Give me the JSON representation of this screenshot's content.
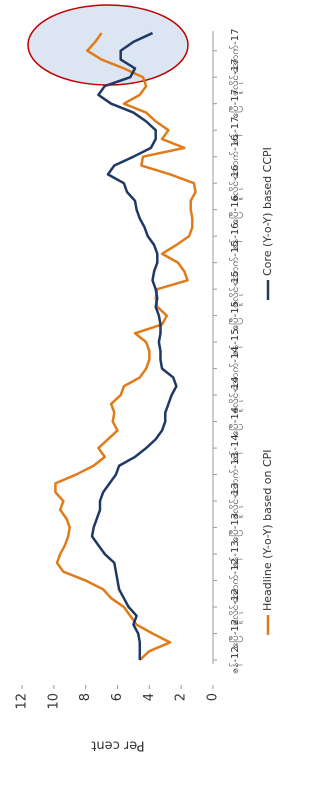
{
  "chart_data": {
    "type": "line",
    "y_label": "Per cent",
    "categories": [
      "ဇန်-12",
      null,
      null,
      "ဧပြီ-12",
      null,
      null,
      "ဇူလိုင်-12",
      null,
      null,
      "အောက်-12",
      null,
      null,
      "ဇန်-13",
      null,
      null,
      "ဧပြီ-13",
      null,
      null,
      "ဇူလိုင်-13",
      null,
      null,
      "အောက်-13",
      null,
      null,
      "ဇန်-14",
      null,
      null,
      "ဧပြီ-14",
      null,
      null,
      "ဇူလိုင်-14",
      null,
      null,
      "အောက်-14",
      null,
      null,
      "ဇန်-15",
      null,
      null,
      "ဧပြီ-15",
      null,
      null,
      "ဇူလိုင်-15",
      null,
      null,
      "အောက်-15",
      null,
      null,
      "ဇန်-16",
      null,
      null,
      "ဧပြီ-16",
      null,
      null,
      "ဇူလိုင်-16",
      null,
      null,
      "အောက်-16",
      null,
      null,
      "ဇန်-17",
      null,
      null,
      "ဧပြီ-17",
      null,
      null,
      "ဇူလိုင်-17",
      null,
      null,
      "အောက်-17",
      null,
      null
    ],
    "series": [
      {
        "name": "Headline (Y-o-Y) based on CPI",
        "color": "#e07b1a",
        "values": [
          4.6,
          4.0,
          2.7,
          3.8,
          4.8,
          5.2,
          5.6,
          6.4,
          6.9,
          8.0,
          9.4,
          9.8,
          9.6,
          9.3,
          9.1,
          9.0,
          9.2,
          9.6,
          9.4,
          9.9,
          9.9,
          8.6,
          7.5,
          6.8,
          7.2,
          6.6,
          6.0,
          6.3,
          6.2,
          6.4,
          5.8,
          5.6,
          4.6,
          4.2,
          4.0,
          4.0,
          4.2,
          4.9,
          3.2,
          2.9,
          3.5,
          3.6,
          3.5,
          1.6,
          1.8,
          2.2,
          3.2,
          2.3,
          1.5,
          1.3,
          1.3,
          1.4,
          1.4,
          1.1,
          1.2,
          2.7,
          4.5,
          4.4,
          1.8,
          3.2,
          2.8,
          3.6,
          4.2,
          5.6,
          4.6,
          4.2,
          4.4,
          5.6,
          7.0,
          7.9,
          7.4,
          7.0
        ]
      },
      {
        "name": "Core (Y-o-Y) based CCPI",
        "color": "#1f3864",
        "values": [
          4.6,
          4.6,
          4.6,
          4.7,
          5.0,
          4.8,
          5.3,
          5.6,
          5.9,
          6.0,
          6.1,
          6.2,
          6.8,
          7.2,
          7.6,
          7.5,
          7.3,
          7.1,
          7.1,
          6.9,
          6.5,
          6.1,
          5.9,
          4.9,
          4.2,
          3.6,
          3.2,
          3.0,
          3.0,
          2.8,
          2.6,
          2.3,
          2.5,
          3.2,
          3.3,
          3.3,
          3.4,
          3.3,
          3.3,
          3.4,
          3.6,
          3.5,
          3.6,
          3.8,
          3.7,
          3.5,
          3.5,
          3.7,
          4.1,
          4.3,
          4.6,
          4.8,
          4.9,
          5.4,
          5.6,
          6.6,
          6.2,
          5.0,
          3.9,
          3.6,
          3.6,
          4.2,
          5.0,
          6.4,
          7.2,
          6.8,
          5.2,
          4.9,
          5.8,
          5.8,
          5.0,
          3.8
        ]
      }
    ],
    "ylim": [
      0,
      12
    ],
    "yticks": [
      0,
      2,
      4,
      6,
      8,
      10,
      12
    ]
  }
}
